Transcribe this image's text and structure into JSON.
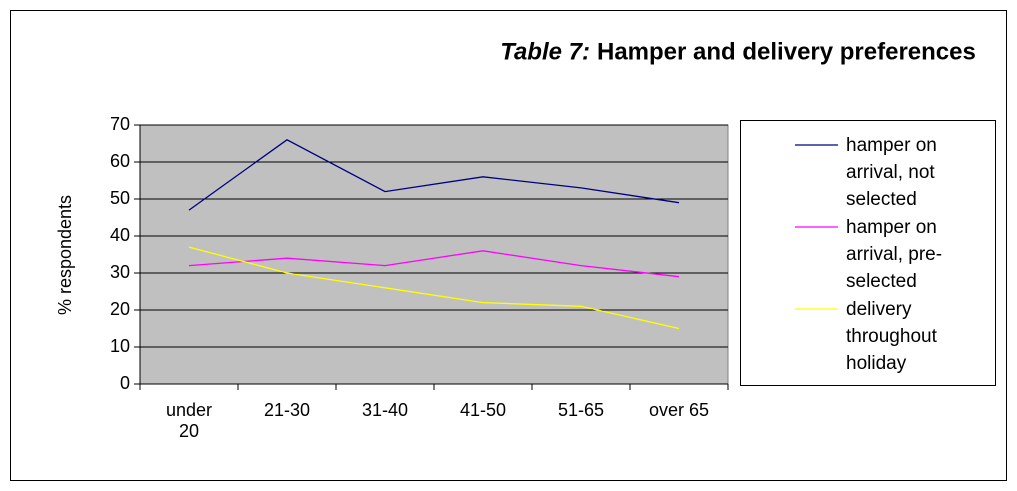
{
  "chart_data": {
    "type": "line",
    "title_prefix": "Table 7:",
    "title": "Hamper and delivery preferences",
    "ylabel": "% respondents",
    "categories": [
      "under 20",
      "21-30",
      "31-40",
      "41-50",
      "51-65",
      "over 65"
    ],
    "series": [
      {
        "name": "hamper on arrival,  not selected",
        "color": "#000080",
        "values": [
          47,
          66,
          52,
          56,
          53,
          49
        ]
      },
      {
        "name": "hamper on arrival, pre-selected",
        "color": "#ff00ff",
        "values": [
          32,
          34,
          32,
          36,
          32,
          29
        ]
      },
      {
        "name": "delivery throughout holiday",
        "color": "#ffff00",
        "values": [
          37,
          30,
          26,
          22,
          21,
          15
        ]
      }
    ],
    "ylim": [
      0,
      70
    ],
    "yticks": [
      0,
      10,
      20,
      30,
      40,
      50,
      60,
      70
    ],
    "grid": true,
    "legend": "right"
  }
}
